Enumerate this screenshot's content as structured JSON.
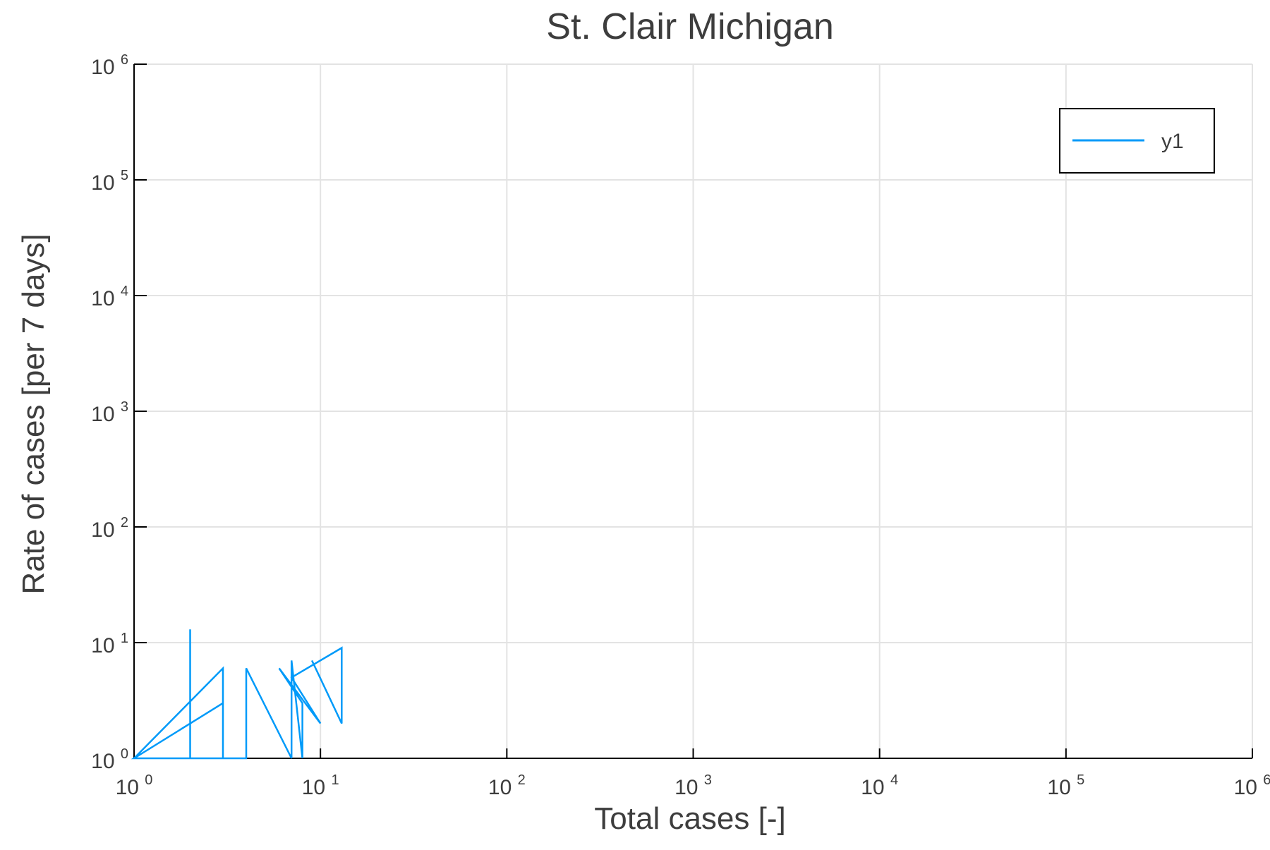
{
  "chart_data": {
    "type": "line",
    "title": "St. Clair Michigan",
    "xlabel": "Total cases [-]",
    "ylabel": "Rate of cases [per 7 days]",
    "xscale": "log",
    "yscale": "log",
    "xlim": [
      1,
      1000000
    ],
    "ylim": [
      1,
      1000000
    ],
    "grid": true,
    "legend_position": "top-right",
    "x_ticks": [
      {
        "base": "10",
        "exp": "0",
        "value": 1
      },
      {
        "base": "10",
        "exp": "1",
        "value": 10
      },
      {
        "base": "10",
        "exp": "2",
        "value": 100
      },
      {
        "base": "10",
        "exp": "3",
        "value": 1000
      },
      {
        "base": "10",
        "exp": "4",
        "value": 10000
      },
      {
        "base": "10",
        "exp": "5",
        "value": 100000
      },
      {
        "base": "10",
        "exp": "6",
        "value": 1000000
      }
    ],
    "y_ticks": [
      {
        "base": "10",
        "exp": "0",
        "value": 1
      },
      {
        "base": "10",
        "exp": "1",
        "value": 10
      },
      {
        "base": "10",
        "exp": "2",
        "value": 100
      },
      {
        "base": "10",
        "exp": "3",
        "value": 1000
      },
      {
        "base": "10",
        "exp": "4",
        "value": 10000
      },
      {
        "base": "10",
        "exp": "5",
        "value": 100000
      },
      {
        "base": "10",
        "exp": "6",
        "value": 1000000
      }
    ],
    "series": [
      {
        "name": "y1",
        "color": "#009af9",
        "points": [
          {
            "x": 1,
            "y": 1
          },
          {
            "x": 3,
            "y": 6
          },
          {
            "x": 3,
            "y": 1
          },
          {
            "x": 3,
            "y": 3
          },
          {
            "x": 1,
            "y": 1
          },
          {
            "x": 2,
            "y": 1
          },
          {
            "x": 2,
            "y": 13
          },
          {
            "x": 2,
            "y": 1
          },
          {
            "x": 4,
            "y": 1
          },
          {
            "x": 4,
            "y": 6
          },
          {
            "x": 7,
            "y": 1
          },
          {
            "x": 7,
            "y": 7
          },
          {
            "x": 8,
            "y": 1
          },
          {
            "x": 8,
            "y": 3
          },
          {
            "x": 6,
            "y": 6
          },
          {
            "x": 10,
            "y": 2
          },
          {
            "x": 7,
            "y": 5
          },
          {
            "x": 13,
            "y": 9
          },
          {
            "x": 13,
            "y": 2
          },
          {
            "x": 9,
            "y": 7
          }
        ]
      }
    ]
  }
}
